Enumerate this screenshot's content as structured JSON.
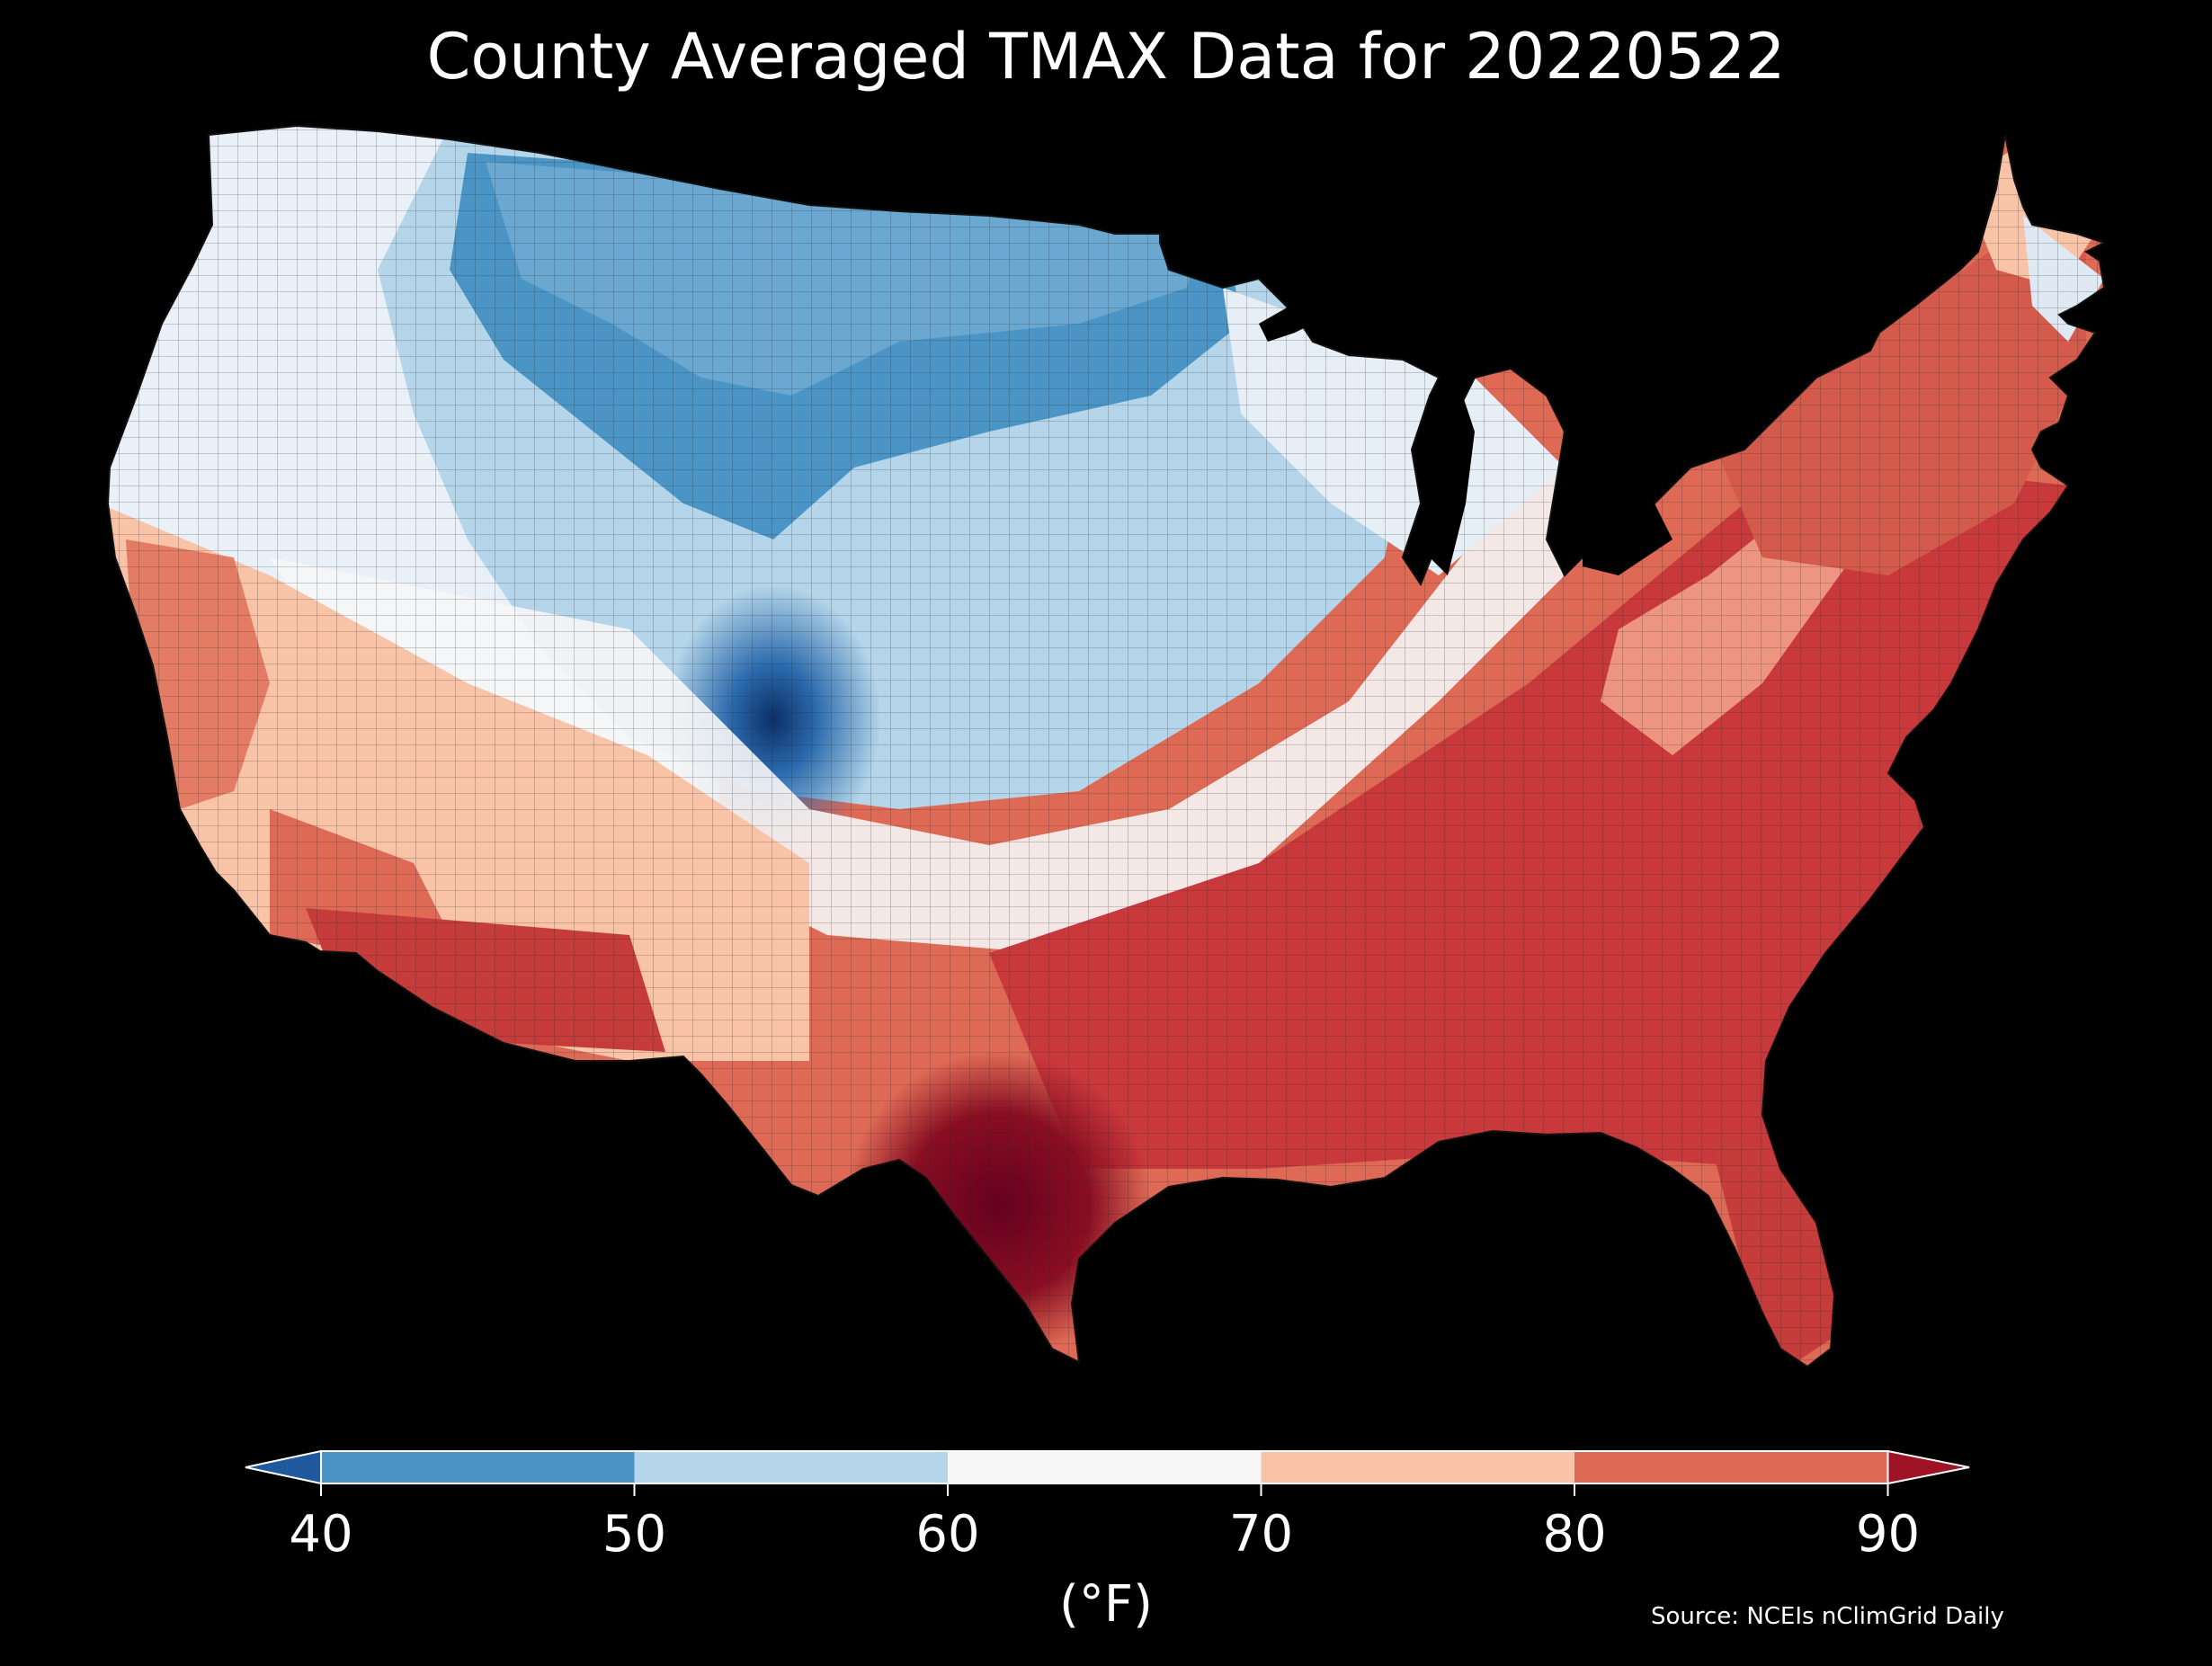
{
  "title": "County Averaged TMAX Data for 20220522",
  "colorbar": {
    "unit_label": "(°F)",
    "ticks": [
      "40",
      "50",
      "60",
      "70",
      "80",
      "90"
    ],
    "bins": [
      {
        "range": "<40",
        "color": "#1f5a9e"
      },
      {
        "range": "40-50",
        "color": "#4a95c6"
      },
      {
        "range": "50-60",
        "color": "#b5d6ea"
      },
      {
        "range": "60-70",
        "color": "#f6f6f6"
      },
      {
        "range": "70-80",
        "color": "#f8c3a6"
      },
      {
        "range": "80-90",
        "color": "#de6a55"
      },
      {
        "range": ">90",
        "color": "#9e1424"
      }
    ]
  },
  "source": "Source: NCEIs nClimGrid Daily",
  "background_color": "#000000",
  "water_color": "#000000"
}
